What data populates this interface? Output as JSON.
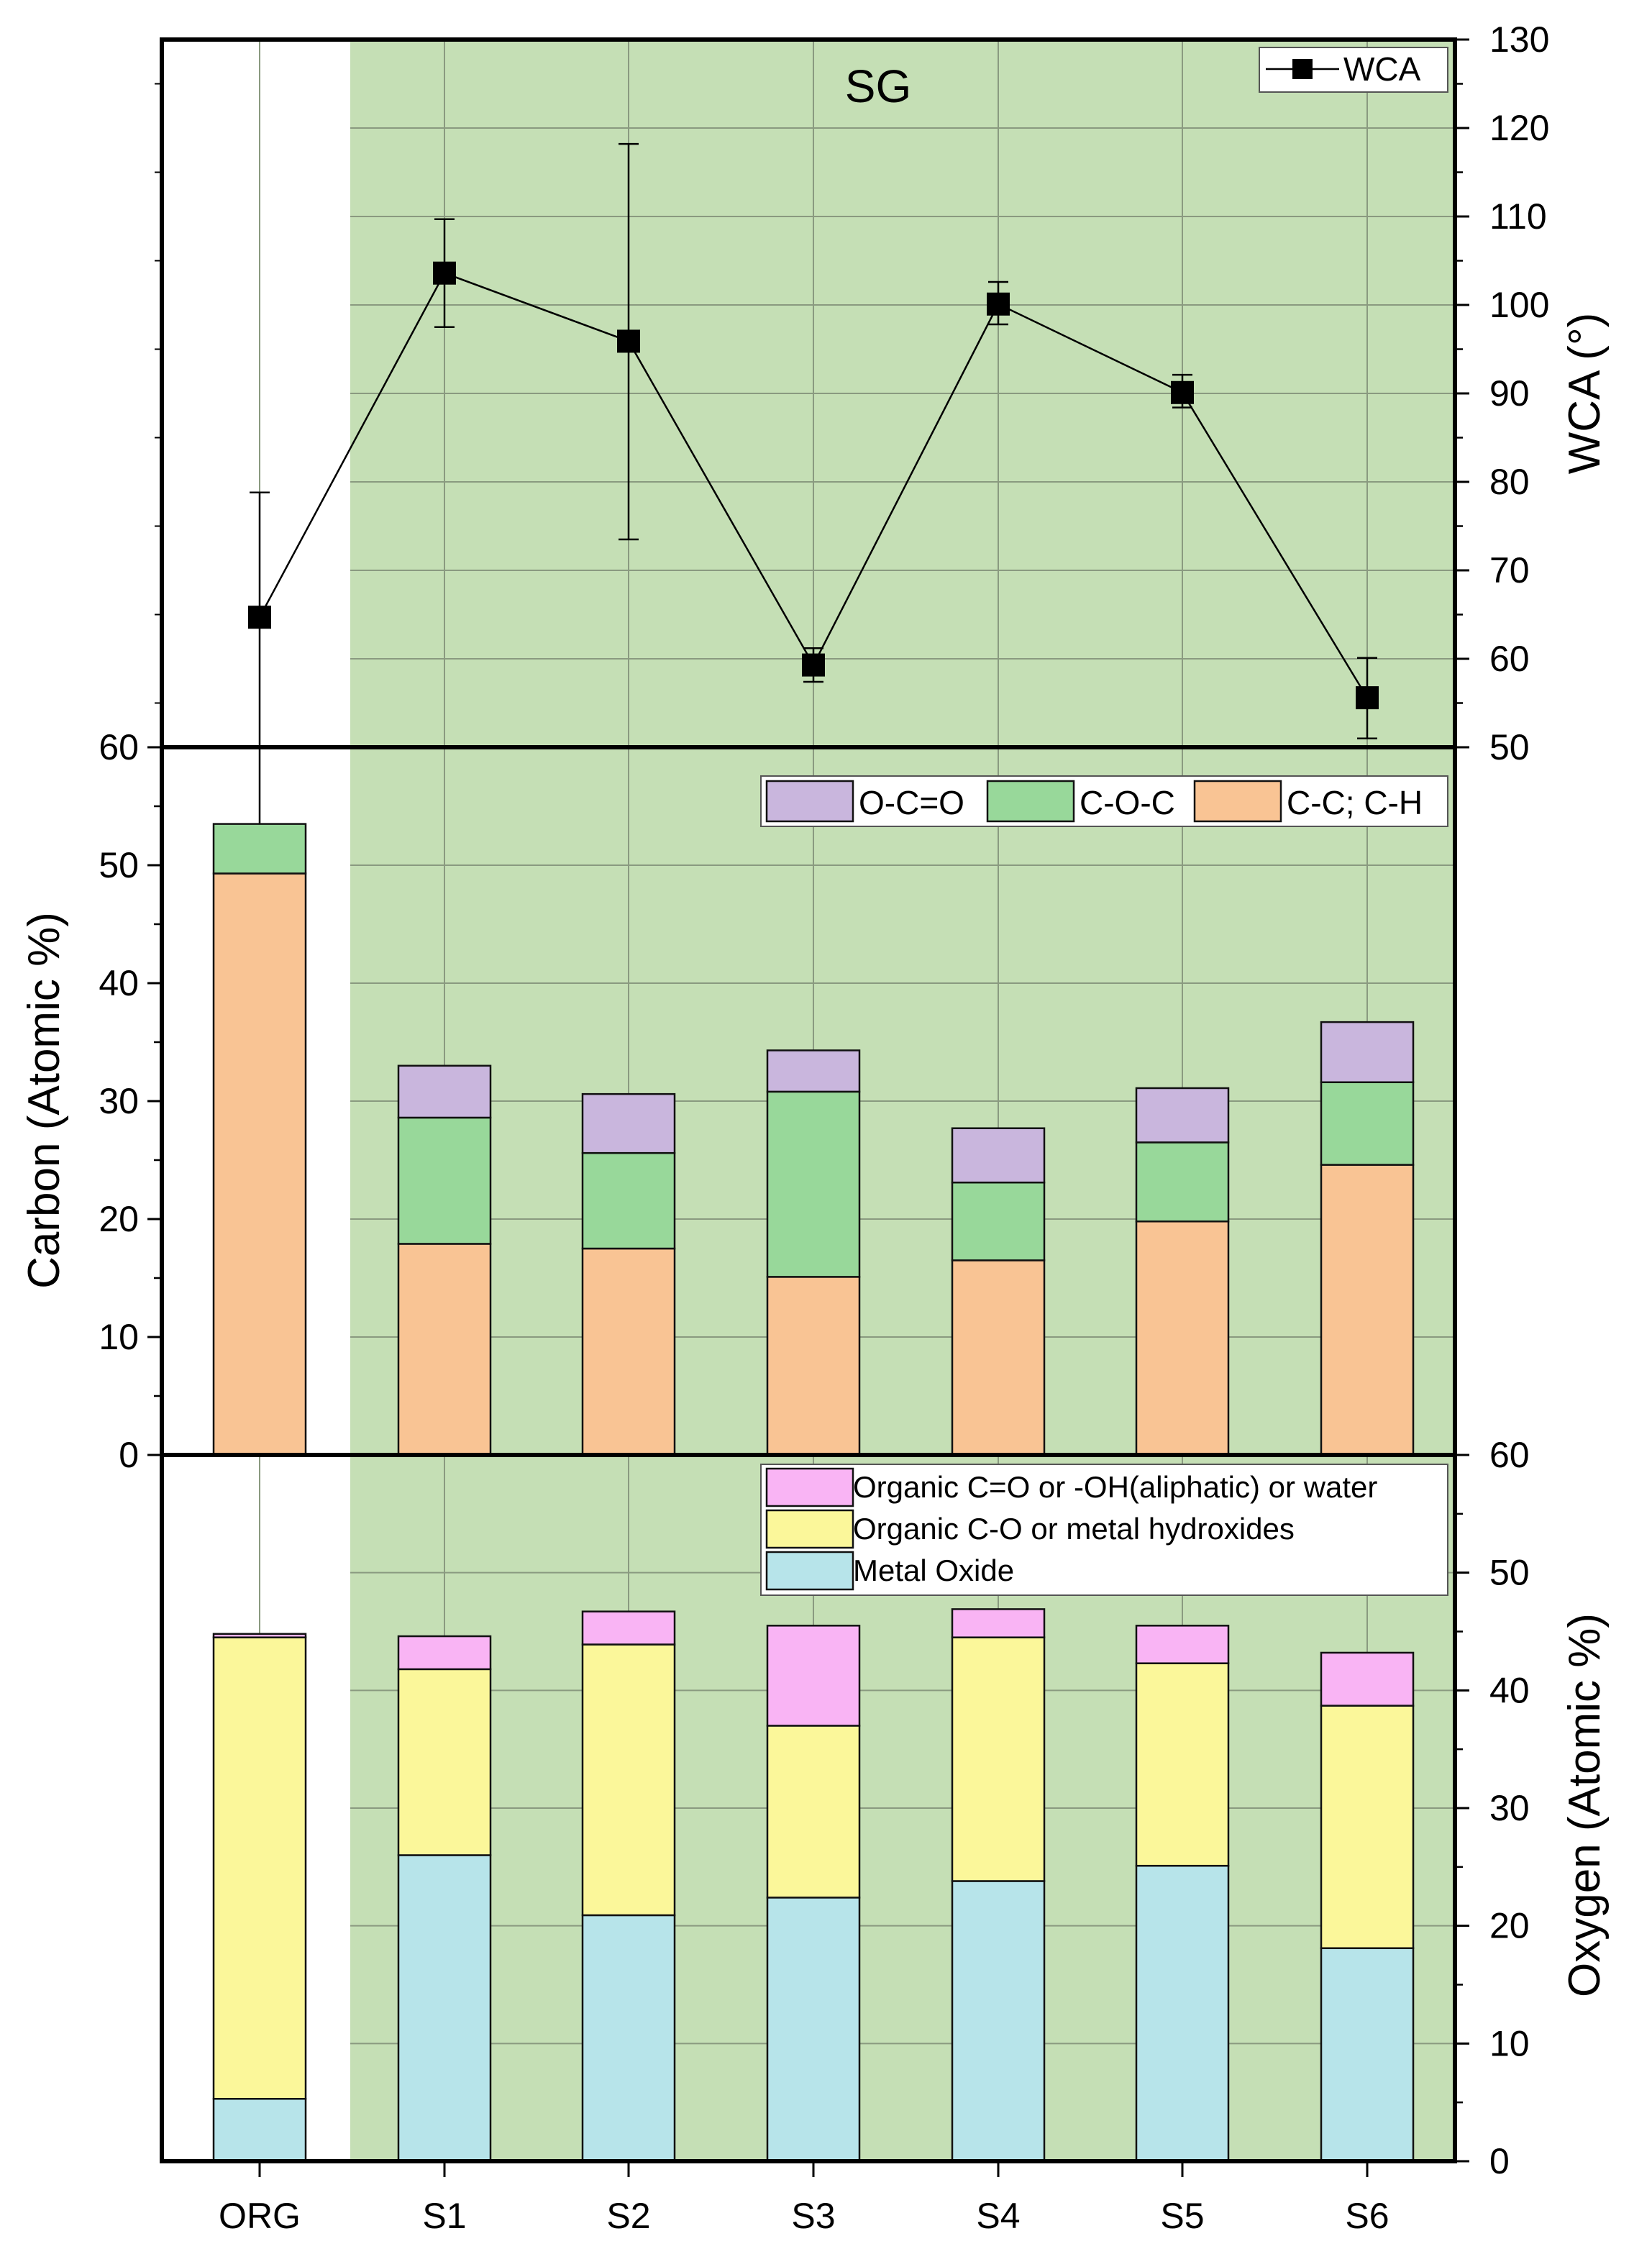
{
  "chart_data": [
    {
      "type": "line",
      "title": "SG",
      "categories": [
        "ORG",
        "S1",
        "S2",
        "S3",
        "S4",
        "S5",
        "S6"
      ],
      "series": [
        {
          "name": "WCA",
          "values": [
            64.7,
            103.6,
            95.9,
            59.3,
            100.1,
            90.1,
            55.6
          ],
          "error_low": [
            10.3,
            97.5,
            73.5,
            57.4,
            97.8,
            88.4,
            51.0
          ],
          "error_high": [
            78.8,
            109.7,
            118.2,
            61.2,
            102.6,
            92.1,
            60.1
          ]
        }
      ],
      "xlabel": "",
      "ylabel": "WCA (°)",
      "ylim": [
        50,
        130
      ],
      "yticks": [
        "50",
        "60",
        "70",
        "80",
        "90",
        "100",
        "110",
        "120",
        "130"
      ],
      "marker_color": "#000000"
    },
    {
      "type": "bar",
      "stacked": true,
      "categories": [
        "ORG",
        "S1",
        "S2",
        "S3",
        "S4",
        "S5",
        "S6"
      ],
      "series": [
        {
          "name": "C-C; C-H",
          "color": "#f9c494",
          "values": [
            49.3,
            17.9,
            17.5,
            15.1,
            16.5,
            19.8,
            24.6
          ]
        },
        {
          "name": "C-O-C",
          "color": "#98d89a",
          "values": [
            4.2,
            10.7,
            8.1,
            15.7,
            6.6,
            6.7,
            7.0
          ]
        },
        {
          "name": "O-C=O",
          "color": "#c9b6dd",
          "values": [
            0.0,
            4.4,
            5.0,
            3.5,
            4.6,
            4.6,
            5.1
          ]
        }
      ],
      "ylabel": "Carbon (Atomic %)",
      "ylim": [
        0,
        60
      ],
      "yticks": [
        "0",
        "10",
        "20",
        "30",
        "40",
        "50",
        "60"
      ],
      "legend_position": "top-right"
    },
    {
      "type": "bar",
      "stacked": true,
      "categories": [
        "ORG",
        "S1",
        "S2",
        "S3",
        "S4",
        "S5",
        "S6"
      ],
      "series": [
        {
          "name": "Metal Oxide",
          "color": "#b7e4ea",
          "values": [
            5.3,
            26.0,
            20.9,
            22.4,
            23.8,
            25.1,
            18.1
          ]
        },
        {
          "name": "Organic C-O or metal hydroxides",
          "color": "#fbf79a",
          "values": [
            39.2,
            15.8,
            23.0,
            14.6,
            20.7,
            17.2,
            20.6
          ]
        },
        {
          "name": "Organic C=O or -OH(aliphatic) or water",
          "color": "#f9b4f4",
          "values": [
            0.3,
            2.8,
            2.8,
            8.5,
            2.4,
            3.2,
            4.5
          ]
        }
      ],
      "ylabel": "Oxygen (Atomic %)",
      "ylim": [
        0,
        60
      ],
      "yticks": [
        "0",
        "10",
        "20",
        "30",
        "40",
        "50",
        "60"
      ],
      "legend_position": "top-right"
    }
  ],
  "theme": {
    "shade_color": "#c5dfb5",
    "grid_color": "#8a9a80",
    "frame_color": "#000000"
  }
}
